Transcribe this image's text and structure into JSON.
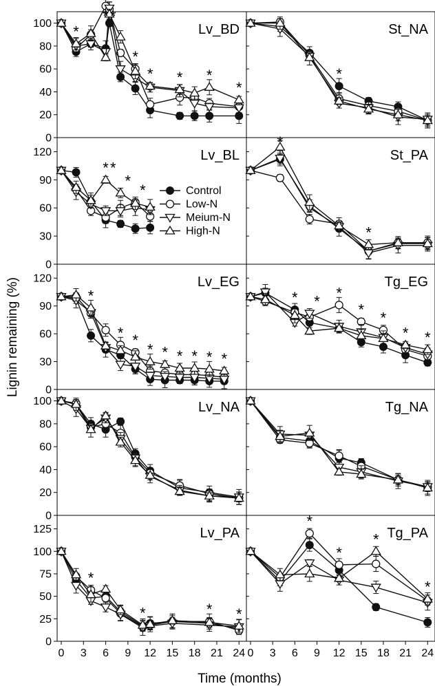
{
  "figure": {
    "ylabel": "Lignin remaining (%)",
    "xlabel": "Time (months)"
  },
  "legend": [
    "Control",
    "Low-N",
    "Meium-N",
    "High-N"
  ],
  "chart_data": [
    {
      "type": "line",
      "title": "Lv_BD",
      "ylim": [
        0,
        110
      ],
      "yticks": [
        0,
        20,
        40,
        60,
        80,
        100
      ],
      "x_months": [
        0,
        2,
        4,
        6,
        6.5,
        8,
        10,
        12,
        16,
        18,
        20,
        24
      ],
      "series": [
        {
          "name": "Control",
          "values": [
            100,
            75,
            82,
            78,
            100,
            53,
            43,
            24,
            19,
            19,
            19,
            19
          ]
        },
        {
          "name": "Low-N",
          "values": [
            100,
            78,
            90,
            115,
            112,
            74,
            60,
            29,
            35,
            35,
            30,
            27
          ]
        },
        {
          "name": "Meium-N",
          "values": [
            100,
            80,
            82,
            75,
            113,
            60,
            52,
            44,
            41,
            30,
            27,
            26
          ]
        },
        {
          "name": "High-N",
          "values": [
            100,
            82,
            91,
            70,
            108,
            88,
            58,
            45,
            42,
            39,
            44,
            33
          ]
        }
      ],
      "significance_months": [
        2,
        6,
        7,
        10,
        12,
        16,
        20,
        24
      ]
    },
    {
      "type": "line",
      "title": "St_NA",
      "ylim": [
        0,
        110
      ],
      "yticks": [
        0,
        20,
        40,
        60,
        80,
        100
      ],
      "x_months": [
        0,
        4,
        8,
        12,
        16,
        20,
        24
      ],
      "series": [
        {
          "name": "Control",
          "values": [
            100,
            97,
            74,
            45,
            32,
            27,
            15
          ]
        },
        {
          "name": "Low-N",
          "values": [
            100,
            101,
            72,
            34,
            28,
            23,
            15
          ]
        },
        {
          "name": "Meium-N",
          "values": [
            100,
            95,
            71,
            30,
            26,
            18,
            16
          ]
        },
        {
          "name": "High-N",
          "values": [
            100,
            100,
            70,
            32,
            25,
            20,
            15
          ]
        }
      ],
      "significance_months": [
        12
      ]
    },
    {
      "type": "line",
      "title": "Lv_BL",
      "ylim": [
        0,
        135
      ],
      "yticks": [
        0,
        30,
        60,
        90,
        120
      ],
      "x_months": [
        0,
        2,
        4,
        6,
        8,
        10,
        12
      ],
      "series": [
        {
          "name": "Control",
          "values": [
            100,
            98,
            67,
            47,
            43,
            38,
            39
          ]
        },
        {
          "name": "Low-N",
          "values": [
            100,
            80,
            57,
            50,
            60,
            66,
            51
          ]
        },
        {
          "name": "Meium-N",
          "values": [
            100,
            77,
            64,
            57,
            57,
            60,
            58
          ]
        },
        {
          "name": "High-N",
          "values": [
            100,
            82,
            68,
            90,
            76,
            65,
            61
          ]
        }
      ],
      "significance_months": [
        6,
        7,
        9,
        11
      ]
    },
    {
      "type": "line",
      "title": "St_PA",
      "ylim": [
        0,
        135
      ],
      "yticks": [
        0,
        30,
        60,
        90,
        120
      ],
      "x_months": [
        0,
        4,
        8,
        12,
        16,
        20,
        24
      ],
      "series": [
        {
          "name": "Control",
          "values": [
            100,
            112,
            62,
            38,
            14,
            22,
            22
          ]
        },
        {
          "name": "Low-N",
          "values": [
            100,
            92,
            48,
            43,
            14,
            23,
            23
          ]
        },
        {
          "name": "Meium-N",
          "values": [
            100,
            113,
            60,
            40,
            12,
            20,
            20
          ]
        },
        {
          "name": "High-N",
          "values": [
            100,
            125,
            66,
            41,
            21,
            23,
            22
          ]
        }
      ],
      "significance_months": [
        4,
        16
      ]
    },
    {
      "type": "line",
      "title": "Lv_EG",
      "ylim": [
        0,
        135
      ],
      "yticks": [
        0,
        30,
        60,
        90,
        120
      ],
      "x_months": [
        0,
        2,
        4,
        6,
        8,
        10,
        12,
        14,
        16,
        18,
        20,
        22
      ],
      "series": [
        {
          "name": "Control",
          "values": [
            100,
            98,
            58,
            43,
            37,
            22,
            11,
            10,
            10,
            10,
            9,
            9
          ]
        },
        {
          "name": "Low-N",
          "values": [
            100,
            100,
            82,
            64,
            48,
            40,
            20,
            18,
            16,
            16,
            15,
            13
          ]
        },
        {
          "name": "Meium-N",
          "values": [
            100,
            96,
            83,
            45,
            27,
            25,
            15,
            14,
            13,
            13,
            12,
            11
          ]
        },
        {
          "name": "High-N",
          "values": [
            100,
            102,
            88,
            47,
            42,
            35,
            30,
            27,
            23,
            23,
            22,
            20
          ]
        }
      ],
      "significance_months": [
        4,
        8,
        10,
        12,
        14,
        16,
        18,
        20,
        22
      ]
    },
    {
      "type": "line",
      "title": "Tg_EG",
      "ylim": [
        0,
        135
      ],
      "yticks": [
        0,
        30,
        60,
        90,
        120
      ],
      "x_months": [
        0,
        2,
        6,
        8,
        12,
        15,
        18,
        21,
        24
      ],
      "series": [
        {
          "name": "Control",
          "values": [
            100,
            104,
            86,
            72,
            66,
            51,
            46,
            37,
            29
          ]
        },
        {
          "name": "Low-N",
          "values": [
            100,
            95,
            83,
            78,
            91,
            73,
            64,
            43,
            36
          ]
        },
        {
          "name": "Meium-N",
          "values": [
            100,
            105,
            72,
            82,
            68,
            62,
            56,
            45,
            38
          ]
        },
        {
          "name": "High-N",
          "values": [
            100,
            97,
            80,
            63,
            66,
            58,
            55,
            48,
            43
          ]
        }
      ],
      "significance_months": [
        6,
        9,
        12,
        15,
        18,
        21,
        24
      ]
    },
    {
      "type": "line",
      "title": "Lv_NA",
      "ylim": [
        0,
        110
      ],
      "yticks": [
        0,
        20,
        40,
        60,
        80,
        100
      ],
      "x_months": [
        0,
        2,
        4,
        6,
        8,
        10,
        12,
        16,
        20,
        24
      ],
      "series": [
        {
          "name": "Control",
          "values": [
            100,
            97,
            80,
            75,
            82,
            54,
            39,
            24,
            20,
            16
          ]
        },
        {
          "name": "Low-N",
          "values": [
            100,
            98,
            77,
            80,
            72,
            51,
            37,
            26,
            19,
            15
          ]
        },
        {
          "name": "Meium-N",
          "values": [
            100,
            93,
            76,
            85,
            67,
            50,
            34,
            22,
            17,
            16
          ]
        },
        {
          "name": "High-N",
          "values": [
            100,
            97,
            75,
            87,
            64,
            48,
            35,
            21,
            17,
            15
          ]
        }
      ],
      "significance_months": []
    },
    {
      "type": "line",
      "title": "Tg_NA",
      "ylim": [
        0,
        110
      ],
      "yticks": [
        0,
        20,
        40,
        60,
        80,
        100
      ],
      "x_months": [
        0,
        4,
        8,
        12,
        15,
        20,
        24
      ],
      "series": [
        {
          "name": "Control",
          "values": [
            100,
            68,
            65,
            50,
            46,
            31,
            24
          ]
        },
        {
          "name": "Low-N",
          "values": [
            100,
            66,
            63,
            52,
            43,
            31,
            25
          ]
        },
        {
          "name": "Meium-N",
          "values": [
            100,
            71,
            70,
            42,
            38,
            30,
            25
          ]
        },
        {
          "name": "High-N",
          "values": [
            100,
            69,
            72,
            38,
            36,
            31,
            24
          ]
        }
      ],
      "significance_months": []
    },
    {
      "type": "line",
      "title": "Lv_PA",
      "ylim": [
        0,
        140
      ],
      "yticks": [
        0,
        25,
        50,
        75,
        100,
        125
      ],
      "x_months": [
        0,
        2,
        4,
        6,
        8,
        11,
        12,
        15,
        20,
        24
      ],
      "series": [
        {
          "name": "Control",
          "values": [
            100,
            68,
            48,
            50,
            33,
            17,
            20,
            22,
            20,
            14
          ]
        },
        {
          "name": "Low-N",
          "values": [
            100,
            72,
            57,
            48,
            31,
            16,
            18,
            22,
            22,
            12
          ]
        },
        {
          "name": "Meium-N",
          "values": [
            100,
            62,
            45,
            38,
            30,
            15,
            17,
            20,
            18,
            16
          ]
        },
        {
          "name": "High-N",
          "values": [
            100,
            74,
            52,
            58,
            35,
            18,
            19,
            23,
            21,
            17
          ]
        }
      ],
      "significance_months": [
        4,
        11,
        20,
        24
      ]
    },
    {
      "type": "line",
      "title": "Tg_PA",
      "ylim": [
        0,
        140
      ],
      "yticks": [
        0,
        25,
        50,
        75,
        100,
        125
      ],
      "x_months": [
        0,
        4,
        8,
        12,
        17,
        24
      ],
      "series": [
        {
          "name": "Control",
          "values": [
            100,
            67,
            107,
            79,
            38,
            21
          ]
        },
        {
          "name": "Low-N",
          "values": [
            100,
            71,
            120,
            85,
            86,
            45
          ]
        },
        {
          "name": "Meium-N",
          "values": [
            100,
            64,
            87,
            68,
            60,
            43
          ]
        },
        {
          "name": "High-N",
          "values": [
            100,
            74,
            75,
            70,
            100,
            47
          ]
        }
      ],
      "significance_months": [
        8,
        12,
        17,
        24
      ]
    }
  ]
}
